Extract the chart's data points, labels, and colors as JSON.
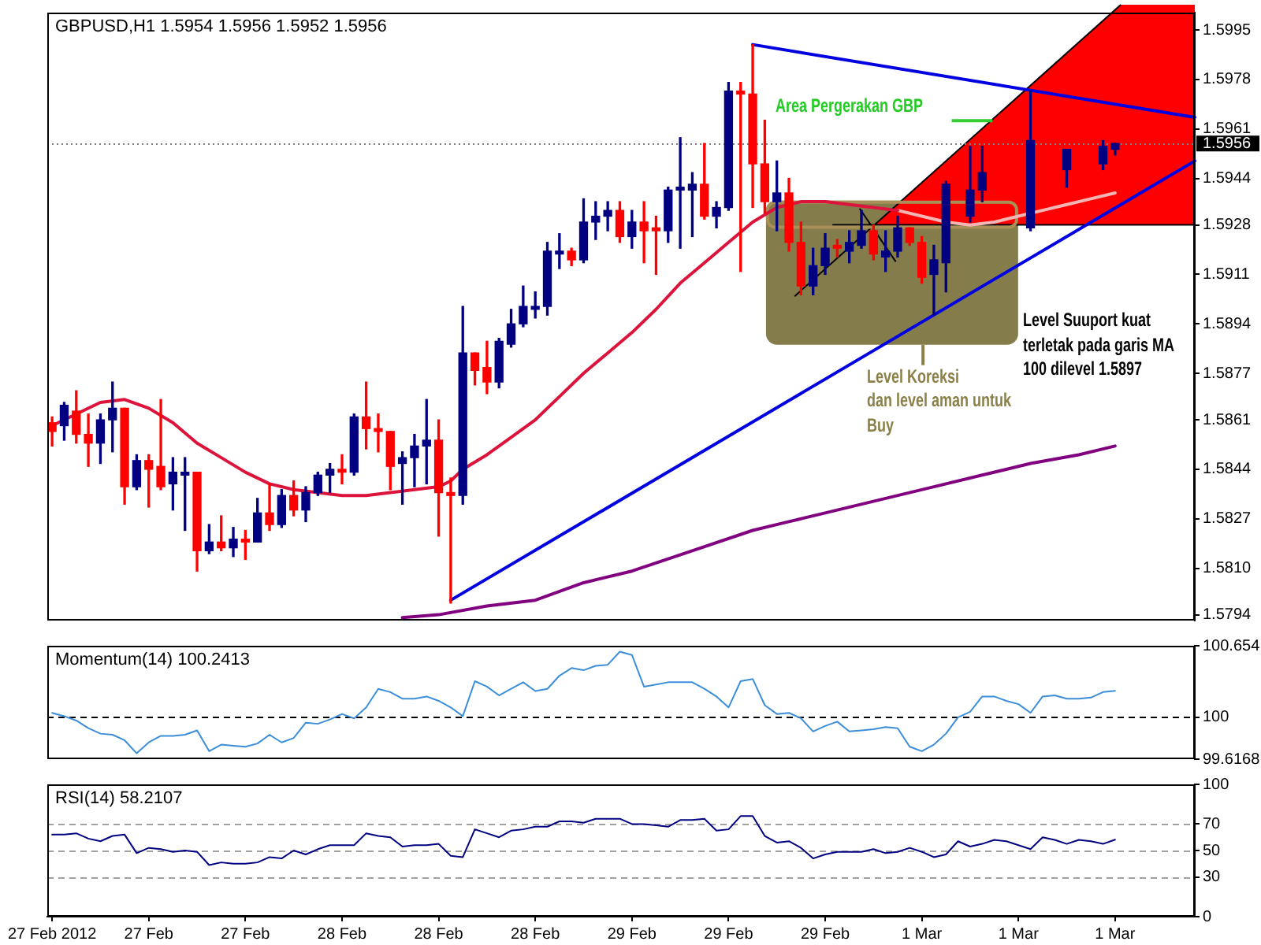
{
  "chart_data": [
    {
      "type": "candlestick",
      "title": "GBPUSD,H1 1.5954 1.5956 1.5952 1.5956",
      "x": [
        "2012-02-27T00:00",
        "2012-02-27T01:00",
        "2012-02-27T02:00",
        "2012-02-27T03:00",
        "2012-02-27T04:00",
        "2012-02-27T05:00",
        "2012-02-27T06:00",
        "2012-02-27T07:00",
        "2012-02-27T08:00",
        "2012-02-27T09:00",
        "2012-02-27T10:00",
        "2012-02-27T11:00",
        "2012-02-27T12:00",
        "2012-02-27T13:00",
        "2012-02-27T14:00",
        "2012-02-27T15:00",
        "2012-02-27T16:00",
        "2012-02-27T17:00",
        "2012-02-27T18:00",
        "2012-02-27T19:00",
        "2012-02-27T20:00",
        "2012-02-27T21:00",
        "2012-02-27T22:00",
        "2012-02-27T23:00",
        "2012-02-28T00:00",
        "2012-02-28T01:00",
        "2012-02-28T02:00",
        "2012-02-28T03:00",
        "2012-02-28T04:00",
        "2012-02-28T05:00",
        "2012-02-28T06:00",
        "2012-02-28T07:00",
        "2012-02-28T08:00",
        "2012-02-28T09:00",
        "2012-02-28T10:00",
        "2012-02-28T11:00",
        "2012-02-28T12:00",
        "2012-02-28T13:00",
        "2012-02-28T14:00",
        "2012-02-28T15:00",
        "2012-02-28T16:00",
        "2012-02-28T17:00",
        "2012-02-28T18:00",
        "2012-02-28T19:00",
        "2012-02-28T20:00",
        "2012-02-28T21:00",
        "2012-02-28T22:00",
        "2012-02-28T23:00",
        "2012-02-29T00:00",
        "2012-02-29T01:00",
        "2012-02-29T02:00",
        "2012-02-29T03:00",
        "2012-02-29T04:00",
        "2012-02-29T05:00",
        "2012-02-29T06:00",
        "2012-02-29T07:00",
        "2012-02-29T08:00",
        "2012-02-29T09:00",
        "2012-02-29T10:00",
        "2012-02-29T11:00",
        "2012-02-29T12:00",
        "2012-02-29T13:00",
        "2012-02-29T14:00",
        "2012-02-29T15:00",
        "2012-02-29T16:00",
        "2012-02-29T17:00",
        "2012-02-29T18:00",
        "2012-02-29T19:00",
        "2012-02-29T20:00",
        "2012-02-29T21:00",
        "2012-02-29T22:00",
        "2012-02-29T23:00",
        "2012-03-01T00:00",
        "2012-03-01T01:00",
        "2012-03-01T02:00",
        "2012-03-01T04:00",
        "2012-03-01T05:00",
        "2012-03-01T09:00",
        "2012-03-01T12:00",
        "2012-03-01T15:00",
        "2012-03-01T16:00"
      ],
      "ohlc": [
        [
          1.586,
          1.5862,
          1.5852,
          1.5857
        ],
        [
          1.5859,
          1.5867,
          1.5854,
          1.5866
        ],
        [
          1.5864,
          1.5871,
          1.5853,
          1.5856
        ],
        [
          1.5856,
          1.5863,
          1.5845,
          1.5853
        ],
        [
          1.5853,
          1.5863,
          1.5846,
          1.5861
        ],
        [
          1.5861,
          1.5874,
          1.585,
          1.5865
        ],
        [
          1.5865,
          1.5865,
          1.5832,
          1.5838
        ],
        [
          1.5838,
          1.5849,
          1.5837,
          1.5847
        ],
        [
          1.5847,
          1.5849,
          1.5831,
          1.5844
        ],
        [
          1.5845,
          1.5868,
          1.5837,
          1.5838
        ],
        [
          1.5839,
          1.5848,
          1.583,
          1.5843
        ],
        [
          1.5842,
          1.5848,
          1.5823,
          1.5843
        ],
        [
          1.5843,
          1.5843,
          1.5809,
          1.5816
        ],
        [
          1.5816,
          1.5825,
          1.5815,
          1.5819
        ],
        [
          1.5819,
          1.5828,
          1.5816,
          1.5817
        ],
        [
          1.5817,
          1.5824,
          1.5814,
          1.582
        ],
        [
          1.582,
          1.5823,
          1.5813,
          1.5819
        ],
        [
          1.5819,
          1.5834,
          1.5819,
          1.5829
        ],
        [
          1.5829,
          1.5839,
          1.5823,
          1.5825
        ],
        [
          1.5825,
          1.5837,
          1.5824,
          1.5835
        ],
        [
          1.5835,
          1.584,
          1.5828,
          1.583
        ],
        [
          1.583,
          1.5838,
          1.5826,
          1.5836
        ],
        [
          1.5836,
          1.5843,
          1.5835,
          1.5842
        ],
        [
          1.5842,
          1.5846,
          1.5836,
          1.5844
        ],
        [
          1.5844,
          1.5849,
          1.5839,
          1.5843
        ],
        [
          1.5843,
          1.5863,
          1.5842,
          1.5862
        ],
        [
          1.5862,
          1.5874,
          1.5851,
          1.5858
        ],
        [
          1.5858,
          1.5863,
          1.585,
          1.5857
        ],
        [
          1.5857,
          1.5857,
          1.5837,
          1.5845
        ],
        [
          1.5846,
          1.585,
          1.5832,
          1.5848
        ],
        [
          1.5848,
          1.5856,
          1.5838,
          1.5852
        ],
        [
          1.5852,
          1.5868,
          1.5839,
          1.5854
        ],
        [
          1.5854,
          1.5861,
          1.5821,
          1.5836
        ],
        [
          1.5836,
          1.5841,
          1.5798,
          1.5835
        ],
        [
          1.5835,
          1.59,
          1.5832,
          1.5884
        ],
        [
          1.5884,
          1.5884,
          1.5873,
          1.5878
        ],
        [
          1.5879,
          1.5888,
          1.587,
          1.5874
        ],
        [
          1.5874,
          1.5889,
          1.5872,
          1.5888
        ],
        [
          1.5887,
          1.5899,
          1.5886,
          1.5894
        ],
        [
          1.5894,
          1.5907,
          1.5893,
          1.59
        ],
        [
          1.5899,
          1.5905,
          1.5896,
          1.59
        ],
        [
          1.59,
          1.5922,
          1.5897,
          1.5919
        ],
        [
          1.5918,
          1.5925,
          1.5913,
          1.5919
        ],
        [
          1.5919,
          1.592,
          1.5914,
          1.5916
        ],
        [
          1.5916,
          1.5937,
          1.5915,
          1.5929
        ],
        [
          1.5929,
          1.5936,
          1.5923,
          1.5931
        ],
        [
          1.5931,
          1.5936,
          1.5926,
          1.5933
        ],
        [
          1.5933,
          1.5936,
          1.5922,
          1.5924
        ],
        [
          1.5924,
          1.5933,
          1.592,
          1.5929
        ],
        [
          1.5929,
          1.5936,
          1.5915,
          1.5926
        ],
        [
          1.5927,
          1.5931,
          1.5911,
          1.5926
        ],
        [
          1.5926,
          1.5941,
          1.5922,
          1.594
        ],
        [
          1.594,
          1.5958,
          1.592,
          1.5941
        ],
        [
          1.594,
          1.5946,
          1.5924,
          1.5942
        ],
        [
          1.5942,
          1.5956,
          1.593,
          1.5931
        ],
        [
          1.5931,
          1.5936,
          1.5927,
          1.5934
        ],
        [
          1.5934,
          1.5977,
          1.5933,
          1.5974
        ],
        [
          1.5974,
          1.5977,
          1.5912,
          1.5973
        ],
        [
          1.5973,
          1.599,
          1.5934,
          1.5949
        ],
        [
          1.5949,
          1.5964,
          1.5932,
          1.5936
        ],
        [
          1.5936,
          1.595,
          1.5926,
          1.5939
        ],
        [
          1.5939,
          1.5944,
          1.5919,
          1.5922
        ],
        [
          1.5922,
          1.5929,
          1.5904,
          1.5907
        ],
        [
          1.5907,
          1.592,
          1.5904,
          1.5914
        ],
        [
          1.5914,
          1.5925,
          1.5911,
          1.592
        ],
        [
          1.5921,
          1.5923,
          1.5917,
          1.592
        ],
        [
          1.5919,
          1.5926,
          1.5915,
          1.5922
        ],
        [
          1.5921,
          1.5933,
          1.592,
          1.5926
        ],
        [
          1.5926,
          1.5928,
          1.5916,
          1.5918
        ],
        [
          1.5917,
          1.5926,
          1.5912,
          1.5919
        ],
        [
          1.5919,
          1.5931,
          1.5917,
          1.5927
        ],
        [
          1.5927,
          1.5927,
          1.5921,
          1.5922
        ],
        [
          1.5922,
          1.5924,
          1.5908,
          1.591
        ],
        [
          1.5911,
          1.5921,
          1.5897,
          1.5916
        ],
        [
          1.5915,
          1.5943,
          1.5905,
          1.5942
        ],
        [
          1.5931,
          1.5955,
          1.5929,
          1.594
        ],
        [
          1.594,
          1.5955,
          1.5936,
          1.5946
        ],
        [
          1.5927,
          1.5974,
          1.5926,
          1.5957
        ],
        [
          1.5947,
          1.5954,
          1.5941,
          1.5954
        ],
        [
          1.5949,
          1.5957,
          1.5947,
          1.5955
        ],
        [
          1.5954,
          1.5956,
          1.5952,
          1.5956
        ]
      ],
      "colors": [
        "#ff0000",
        "#000080",
        "#ff0000",
        "#ff0000",
        "#000080",
        "#000080",
        "#ff0000",
        "#000080",
        "#ff0000",
        "#ff0000",
        "#000080",
        "#000080",
        "#ff0000",
        "#000080",
        "#ff0000",
        "#000080",
        "#ff0000",
        "#000080",
        "#ff0000",
        "#000080",
        "#ff0000",
        "#000080",
        "#000080",
        "#000080",
        "#ff0000",
        "#000080",
        "#ff0000",
        "#ff0000",
        "#ff0000",
        "#000080",
        "#000080",
        "#000080",
        "#ff0000",
        "#ff0000",
        "#000080",
        "#ff0000",
        "#ff0000",
        "#000080",
        "#000080",
        "#000080",
        "#000080",
        "#000080",
        "#000080",
        "#ff0000",
        "#000080",
        "#000080",
        "#000080",
        "#ff0000",
        "#000080",
        "#ff0000",
        "#ff0000",
        "#000080",
        "#000080",
        "#000080",
        "#ff0000",
        "#000080",
        "#000080",
        "#ff0000",
        "#ff0000",
        "#ff0000",
        "#000080",
        "#ff0000",
        "#ff0000",
        "#000080",
        "#000080",
        "#ff0000",
        "#000080",
        "#000080",
        "#ff0000",
        "#000080",
        "#000080",
        "#ff0000",
        "#ff0000",
        "#000080",
        "#000080",
        "#000080",
        "#000080",
        "#000080",
        "#000080",
        "#000080",
        "#000080"
      ],
      "series": [
        {
          "type": "line",
          "x": [
            "2012-02-27T00:00",
            "2012-02-27T02:00",
            "2012-02-27T04:00",
            "2012-02-27T06:00",
            "2012-02-27T08:00",
            "2012-02-27T10:00",
            "2012-02-27T12:00",
            "2012-02-27T14:00",
            "2012-02-27T16:00",
            "2012-02-27T18:00",
            "2012-02-27T20:00",
            "2012-02-27T22:00",
            "2012-02-28T00:00",
            "2012-02-28T02:00",
            "2012-02-28T04:00",
            "2012-02-28T06:00",
            "2012-02-28T08:00",
            "2012-02-28T09:00",
            "2012-02-28T10:00",
            "2012-02-28T12:00",
            "2012-02-28T14:00",
            "2012-02-28T16:00",
            "2012-02-28T18:00",
            "2012-02-28T20:00",
            "2012-02-28T22:00",
            "2012-02-29T00:00",
            "2012-02-29T02:00",
            "2012-02-29T04:00",
            "2012-02-29T06:00",
            "2012-02-29T08:00",
            "2012-02-29T10:00",
            "2012-02-29T12:00",
            "2012-02-29T14:00",
            "2012-02-29T16:00",
            "2012-02-29T18:00",
            "2012-02-29T20:00",
            "2012-02-29T22:00"
          ],
          "values": [
            1.5859,
            1.5863,
            1.5867,
            1.5868,
            1.5865,
            1.586,
            1.5853,
            1.5848,
            1.5843,
            1.5839,
            1.5837,
            1.5836,
            1.5835,
            1.5835,
            1.5836,
            1.5837,
            1.5838,
            1.584,
            1.5844,
            1.5849,
            1.5855,
            1.5861,
            1.5869,
            1.5877,
            1.5884,
            1.5891,
            1.5899,
            1.5908,
            1.5915,
            1.5922,
            1.5929,
            1.5934,
            1.5936,
            1.5936,
            1.5935,
            1.5934,
            1.5933
          ],
          "color": "#dc143c"
        },
        {
          "type": "line",
          "x": [
            "2012-02-29T22:00",
            "2012-03-01T00:00",
            "2012-03-01T02:00",
            "2012-03-01T04:00",
            "2012-03-01T06:00",
            "2012-03-01T08:00",
            "2012-03-01T10:00",
            "2012-03-01T12:00",
            "2012-03-01T14:00",
            "2012-03-01T16:00"
          ],
          "values": [
            1.5933,
            1.5931,
            1.5929,
            1.5928,
            1.5929,
            1.5931,
            1.5933,
            1.5935,
            1.5937,
            1.5939
          ],
          "color": "#f5b5b5"
        },
        {
          "type": "line",
          "x": [
            "2012-02-28T05:00",
            "2012-02-28T08:00",
            "2012-02-28T12:00",
            "2012-02-28T16:00",
            "2012-02-28T20:00",
            "2012-02-29T00:00",
            "2012-02-29T05:00",
            "2012-02-29T10:00",
            "2012-02-29T13:00",
            "2012-02-29T16:00",
            "2012-02-29T21:00",
            "2012-03-01T01:00",
            "2012-03-01T05:00",
            "2012-03-01T09:00",
            "2012-03-01T13:00",
            "2012-03-01T16:00"
          ],
          "values": [
            1.5793,
            1.5794,
            1.5797,
            1.5799,
            1.5805,
            1.5809,
            1.5816,
            1.5823,
            1.5826,
            1.5829,
            1.5834,
            1.5838,
            1.5842,
            1.5846,
            1.5849,
            1.5852
          ],
          "color": "#800080"
        },
        {
          "type": "line",
          "x": [
            "2012-02-29T10:00",
            "2012-03-01T22:36"
          ],
          "values": [
            1.599,
            1.5965
          ],
          "color": "#0000e0"
        },
        {
          "type": "line",
          "x": [
            "2012-02-28T09:00",
            "2012-03-01T22:36"
          ],
          "values": [
            1.5799,
            1.595
          ],
          "color": "#0000e0"
        }
      ],
      "xlim": [
        "2012-02-26T23:36",
        "2012-03-01T22:36"
      ],
      "ylim": [
        1.5792,
        1.6001
      ],
      "yticks": [
        1.5794,
        {
          "value": 1.581,
          "label": "1.5810"
        },
        1.5827,
        1.5844,
        1.5861,
        1.5877,
        1.5894,
        1.5911,
        1.5928,
        1.5944,
        1.5961,
        1.5978,
        1.5995
      ],
      "tick_labels": "y",
      "ref_lines": [
        {
          "axis": "y",
          "value": 1.5956,
          "label": "1.5956",
          "color": "#808080",
          "line_style": "dotted"
        }
      ],
      "annotations": [
        "Area Pergerakan GBP",
        "Level Suuport kuat\nterletak pada garis MA\n100 dilevel 1.5897",
        "Level Koreksi\ndan level aman untuk\nBuy"
      ]
    },
    {
      "type": "line",
      "title": "Momentum(14) 100.2413",
      "x": [
        "2012-02-27T00:00",
        "2012-02-27T01:00",
        "2012-02-27T02:00",
        "2012-02-27T03:00",
        "2012-02-27T04:00",
        "2012-02-27T05:00",
        "2012-02-27T06:00",
        "2012-02-27T07:00",
        "2012-02-27T08:00",
        "2012-02-27T09:00",
        "2012-02-27T10:00",
        "2012-02-27T11:00",
        "2012-02-27T12:00",
        "2012-02-27T13:00",
        "2012-02-27T14:00",
        "2012-02-27T15:00",
        "2012-02-27T16:00",
        "2012-02-27T17:00",
        "2012-02-27T18:00",
        "2012-02-27T19:00",
        "2012-02-27T20:00",
        "2012-02-27T21:00",
        "2012-02-27T22:00",
        "2012-02-27T23:00",
        "2012-02-28T00:00",
        "2012-02-28T01:00",
        "2012-02-28T02:00",
        "2012-02-28T03:00",
        "2012-02-28T04:00",
        "2012-02-28T05:00",
        "2012-02-28T06:00",
        "2012-02-28T07:00",
        "2012-02-28T08:00",
        "2012-02-28T09:00",
        "2012-02-28T10:00",
        "2012-02-28T11:00",
        "2012-02-28T12:00",
        "2012-02-28T13:00",
        "2012-02-28T14:00",
        "2012-02-28T15:00",
        "2012-02-28T16:00",
        "2012-02-28T17:00",
        "2012-02-28T18:00",
        "2012-02-28T19:00",
        "2012-02-28T20:00",
        "2012-02-28T21:00",
        "2012-02-28T22:00",
        "2012-02-28T23:00",
        "2012-02-29T00:00",
        "2012-02-29T01:00",
        "2012-02-29T02:00",
        "2012-02-29T03:00",
        "2012-02-29T04:00",
        "2012-02-29T05:00",
        "2012-02-29T06:00",
        "2012-02-29T07:00",
        "2012-02-29T08:00",
        "2012-02-29T09:00",
        "2012-02-29T10:00",
        "2012-02-29T11:00",
        "2012-02-29T12:00",
        "2012-02-29T13:00",
        "2012-02-29T14:00",
        "2012-02-29T15:00",
        "2012-02-29T16:00",
        "2012-02-29T17:00",
        "2012-02-29T18:00",
        "2012-02-29T19:00",
        "2012-02-29T20:00",
        "2012-02-29T21:00",
        "2012-02-29T22:00",
        "2012-02-29T23:00",
        "2012-03-01T00:00",
        "2012-03-01T01:00",
        "2012-03-01T02:00",
        "2012-03-01T03:00",
        "2012-03-01T04:00",
        "2012-03-01T05:00",
        "2012-03-01T06:00",
        "2012-03-01T07:00",
        "2012-03-01T08:00",
        "2012-03-01T09:00",
        "2012-03-01T10:00",
        "2012-03-01T11:00",
        "2012-03-01T12:00",
        "2012-03-01T13:00",
        "2012-03-01T14:00",
        "2012-03-01T15:00",
        "2012-03-01T16:00"
      ],
      "values": [
        100.04,
        100.01,
        99.97,
        99.9,
        99.85,
        99.84,
        99.79,
        99.67,
        99.77,
        99.83,
        99.83,
        99.84,
        99.88,
        99.69,
        99.75,
        99.74,
        99.73,
        99.76,
        99.84,
        99.77,
        99.81,
        99.95,
        99.94,
        99.98,
        100.03,
        99.99,
        100.09,
        100.26,
        100.23,
        100.17,
        100.17,
        100.19,
        100.15,
        100.09,
        100.01,
        100.33,
        100.28,
        100.2,
        100.26,
        100.32,
        100.24,
        100.26,
        100.38,
        100.45,
        100.43,
        100.47,
        100.48,
        100.6,
        100.57,
        100.28,
        100.3,
        100.32,
        100.32,
        100.32,
        100.26,
        100.19,
        100.09,
        100.33,
        100.35,
        100.11,
        100.03,
        100.04,
        99.99,
        99.87,
        99.92,
        99.96,
        99.87,
        99.88,
        99.89,
        99.91,
        99.9,
        99.73,
        99.69,
        99.75,
        99.85,
        100.0,
        100.05,
        100.19,
        100.19,
        100.15,
        100.12,
        100.04,
        100.19,
        100.2,
        100.17,
        100.17,
        100.18,
        100.23,
        100.2413
      ],
      "color": "#3c8ed8",
      "xlim": [
        "2012-02-26T23:36",
        "2012-03-01T22:36"
      ],
      "ylim": [
        99.6168,
        100.654
      ],
      "yticks": [
        99.6168,
        100,
        100.654
      ],
      "tick_labels": "y",
      "ref_lines": [
        {
          "axis": "y",
          "value": 100,
          "color": "#000000",
          "line_style": "dashed"
        }
      ]
    },
    {
      "type": "line",
      "title": "RSI(14) 58.2107",
      "x": [
        "2012-02-27T00:00",
        "2012-02-27T01:00",
        "2012-02-27T02:00",
        "2012-02-27T03:00",
        "2012-02-27T04:00",
        "2012-02-27T05:00",
        "2012-02-27T06:00",
        "2012-02-27T07:00",
        "2012-02-27T08:00",
        "2012-02-27T09:00",
        "2012-02-27T10:00",
        "2012-02-27T11:00",
        "2012-02-27T12:00",
        "2012-02-27T13:00",
        "2012-02-27T14:00",
        "2012-02-27T15:00",
        "2012-02-27T16:00",
        "2012-02-27T17:00",
        "2012-02-27T18:00",
        "2012-02-27T19:00",
        "2012-02-27T20:00",
        "2012-02-27T21:00",
        "2012-02-27T22:00",
        "2012-02-27T23:00",
        "2012-02-28T00:00",
        "2012-02-28T01:00",
        "2012-02-28T02:00",
        "2012-02-28T03:00",
        "2012-02-28T04:00",
        "2012-02-28T05:00",
        "2012-02-28T06:00",
        "2012-02-28T07:00",
        "2012-02-28T08:00",
        "2012-02-28T09:00",
        "2012-02-28T10:00",
        "2012-02-28T11:00",
        "2012-02-28T12:00",
        "2012-02-28T13:00",
        "2012-02-28T14:00",
        "2012-02-28T15:00",
        "2012-02-28T16:00",
        "2012-02-28T17:00",
        "2012-02-28T18:00",
        "2012-02-28T19:00",
        "2012-02-28T20:00",
        "2012-02-28T21:00",
        "2012-02-28T22:00",
        "2012-02-28T23:00",
        "2012-02-29T00:00",
        "2012-02-29T01:00",
        "2012-02-29T02:00",
        "2012-02-29T03:00",
        "2012-02-29T04:00",
        "2012-02-29T05:00",
        "2012-02-29T06:00",
        "2012-02-29T07:00",
        "2012-02-29T08:00",
        "2012-02-29T09:00",
        "2012-02-29T10:00",
        "2012-02-29T11:00",
        "2012-02-29T12:00",
        "2012-02-29T13:00",
        "2012-02-29T14:00",
        "2012-02-29T15:00",
        "2012-02-29T16:00",
        "2012-02-29T17:00",
        "2012-02-29T18:00",
        "2012-02-29T19:00",
        "2012-02-29T20:00",
        "2012-02-29T21:00",
        "2012-02-29T22:00",
        "2012-02-29T23:00",
        "2012-03-01T00:00",
        "2012-03-01T01:00",
        "2012-03-01T02:00",
        "2012-03-01T03:00",
        "2012-03-01T04:00",
        "2012-03-01T05:00",
        "2012-03-01T06:00",
        "2012-03-01T07:00",
        "2012-03-01T08:00",
        "2012-03-01T09:00",
        "2012-03-01T10:00",
        "2012-03-01T11:00",
        "2012-03-01T12:00",
        "2012-03-01T13:00",
        "2012-03-01T14:00",
        "2012-03-01T15:00",
        "2012-03-01T16:00"
      ],
      "values": [
        62,
        62,
        63,
        59,
        57,
        61,
        62,
        48,
        52,
        51,
        49,
        50,
        49,
        39,
        41,
        40,
        40,
        41,
        45,
        44,
        50,
        47,
        51,
        54,
        54,
        54,
        63,
        61,
        60,
        53,
        54,
        54,
        55,
        46,
        45,
        66,
        63,
        60,
        65,
        66,
        68,
        68,
        72,
        72,
        71,
        74,
        74,
        74,
        70,
        70,
        69,
        68,
        73,
        73,
        74,
        65,
        66,
        76,
        76,
        61,
        56,
        57,
        52,
        44,
        47,
        49,
        49,
        49,
        51,
        48,
        49,
        52,
        49,
        45,
        47,
        57,
        53,
        55,
        58,
        57,
        54,
        51,
        60,
        58,
        55,
        58,
        57,
        55,
        58.2107
      ],
      "color": "#000080",
      "xlim": [
        "2012-02-26T23:36",
        "2012-03-01T22:36"
      ],
      "ylim": [
        0,
        100
      ],
      "yticks": [
        0,
        30,
        50,
        70,
        100
      ],
      "xticks": [
        {
          "value": "2012-02-27T00:00",
          "label": "27 Feb 2012"
        },
        {
          "value": "2012-02-27T08:00",
          "label": "27 Feb"
        },
        {
          "value": "2012-02-27T16:00",
          "label": "27 Feb"
        },
        {
          "value": "2012-02-28T00:00",
          "label": "28 Feb"
        },
        {
          "value": "2012-02-28T08:00",
          "label": "28 Feb"
        },
        {
          "value": "2012-02-28T16:00",
          "label": "28 Feb"
        },
        {
          "value": "2012-02-29T00:00",
          "label": "29 Feb"
        },
        {
          "value": "2012-02-29T08:00",
          "label": "29 Feb"
        },
        {
          "value": "2012-02-29T16:00",
          "label": "29 Feb"
        },
        {
          "value": "2012-03-01T00:00",
          "label": "1 Mar"
        },
        {
          "value": "2012-03-01T08:00",
          "label": "1 Mar"
        },
        {
          "value": "2012-03-01T16:00",
          "label": "1 Mar"
        }
      ],
      "ref_lines": [
        {
          "axis": "y",
          "value": 70,
          "color": "#a0a0a0",
          "line_style": "dashed"
        },
        {
          "axis": "y",
          "value": 50,
          "color": "#a0a0a0",
          "line_style": "dashed"
        },
        {
          "axis": "y",
          "value": 30,
          "color": "#a0a0a0",
          "line_style": "dashed"
        }
      ]
    }
  ]
}
